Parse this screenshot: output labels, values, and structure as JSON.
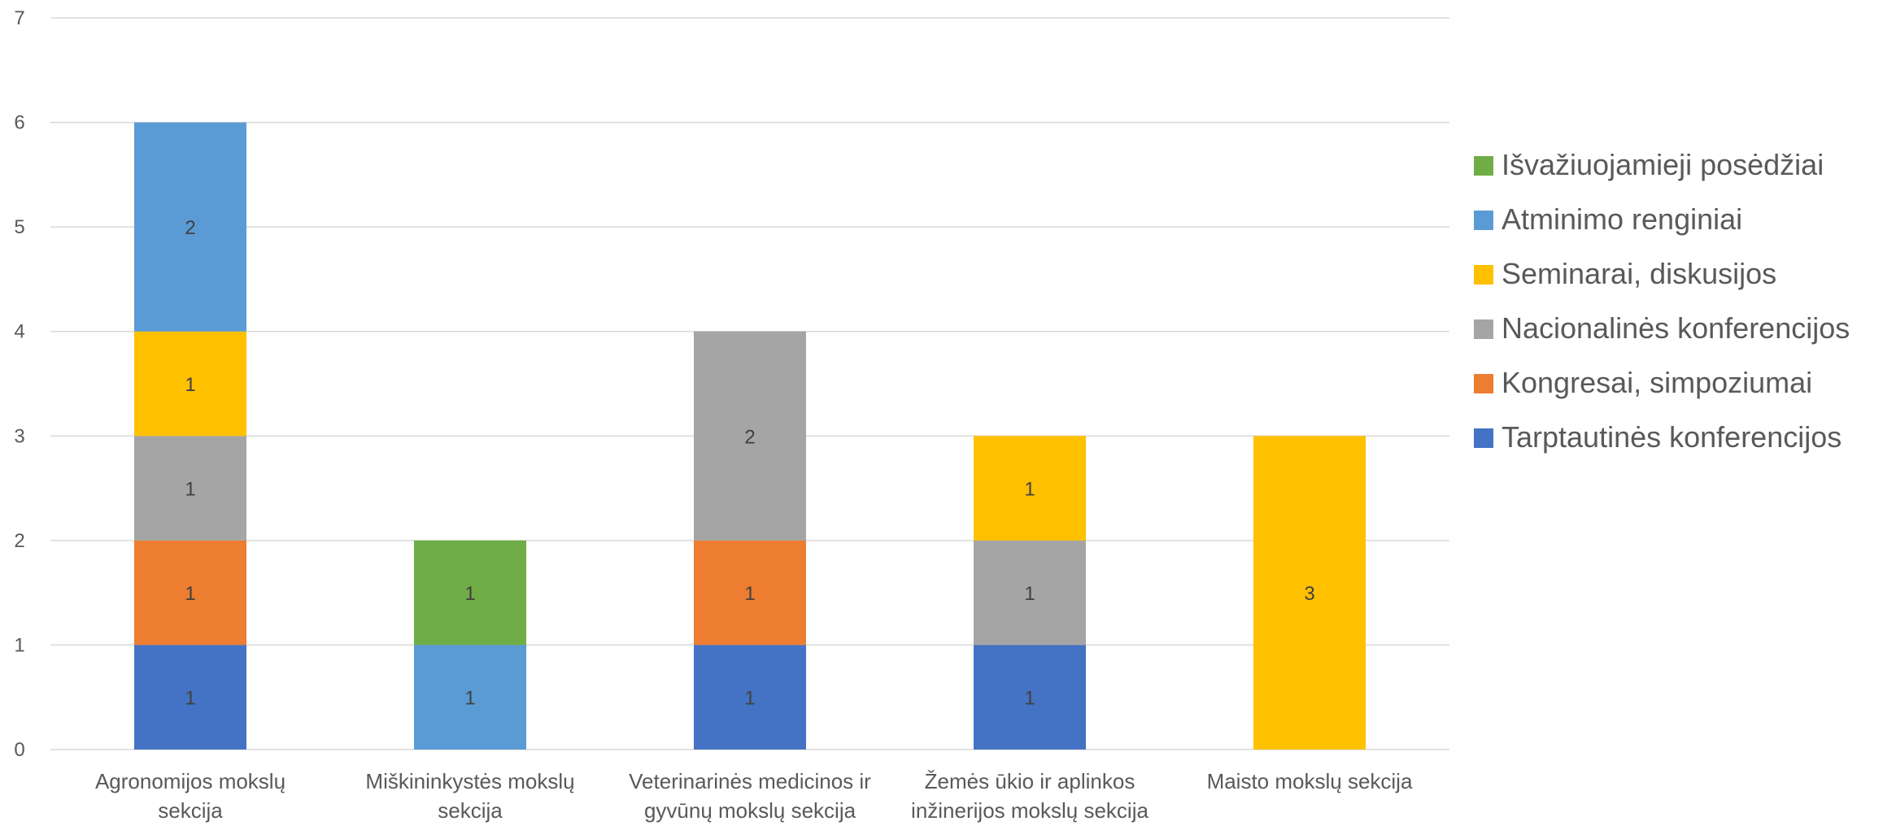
{
  "chart_data": {
    "type": "bar",
    "stacked": true,
    "title": "",
    "xlabel": "",
    "ylabel": "",
    "ylim": [
      0,
      7
    ],
    "yticks": [
      "0",
      "1",
      "2",
      "3",
      "4",
      "5",
      "6",
      "7"
    ],
    "grid": true,
    "legend_position": "right",
    "categories": [
      [
        "Agronomijos mokslų",
        "sekcija"
      ],
      [
        "Miškininkystės mokslų",
        "sekcija"
      ],
      [
        "Veterinarinės medicinos ir",
        "gyvūnų mokslų sekcija"
      ],
      [
        "Žemės ūkio ir aplinkos",
        "inžinerijos mokslų sekcija"
      ],
      [
        "Maisto mokslų sekcija"
      ]
    ],
    "series": [
      {
        "name": "Tarptautinės konferencijos",
        "color": "#4472C4",
        "values": [
          1,
          0,
          1,
          1,
          0
        ]
      },
      {
        "name": "Kongresai, simpoziumai",
        "color": "#ED7D31",
        "values": [
          1,
          0,
          1,
          0,
          0
        ]
      },
      {
        "name": "Nacionalinės konferencijos",
        "color": "#A5A5A5",
        "values": [
          1,
          0,
          2,
          1,
          0
        ]
      },
      {
        "name": "Seminarai, diskusijos",
        "color": "#FFC000",
        "values": [
          1,
          0,
          0,
          1,
          3
        ]
      },
      {
        "name": "Atminimo renginiai",
        "color": "#5B9BD5",
        "values": [
          2,
          1,
          0,
          0,
          0
        ]
      },
      {
        "name": "Išvažiuojamieji posėdžiai",
        "color": "#70AD47",
        "values": [
          0,
          1,
          0,
          0,
          0
        ]
      }
    ]
  }
}
